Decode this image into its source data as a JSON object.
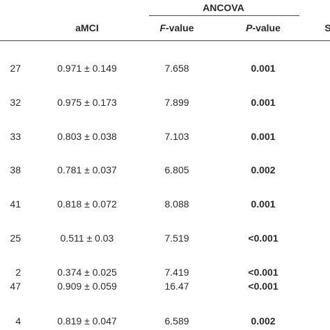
{
  "table": {
    "group_header": "ANCOVA",
    "columns": [
      {
        "text": "aMCI"
      },
      {
        "italic": "F",
        "rest": "-value"
      },
      {
        "italic": "P",
        "rest": "-value"
      },
      {
        "text": "S"
      }
    ],
    "rows": [
      [
        "27",
        "0.971 ± 0.149",
        "7.658",
        "0.001"
      ],
      [
        "32",
        "0.975 ± 0.173",
        "7.899",
        "0.001"
      ],
      [
        "33",
        "0.803 ± 0.038",
        "7.103",
        "0.001"
      ],
      [
        "38",
        "0.781 ± 0.037",
        "6.805",
        "0.002"
      ],
      [
        "41",
        "0.818 ± 0.072",
        "8.088",
        "0.001"
      ],
      [
        "25",
        "0.511 ± 0.03",
        "7.519",
        "<0.001"
      ],
      [
        "2",
        "0.374 ± 0.025",
        "7.419",
        "<0.001"
      ],
      [
        "47",
        "0.909 ± 0.059",
        "16.47",
        "<0.001"
      ],
      [
        "4",
        "0.819 ± 0.047",
        "6.589",
        "0.002"
      ]
    ]
  }
}
